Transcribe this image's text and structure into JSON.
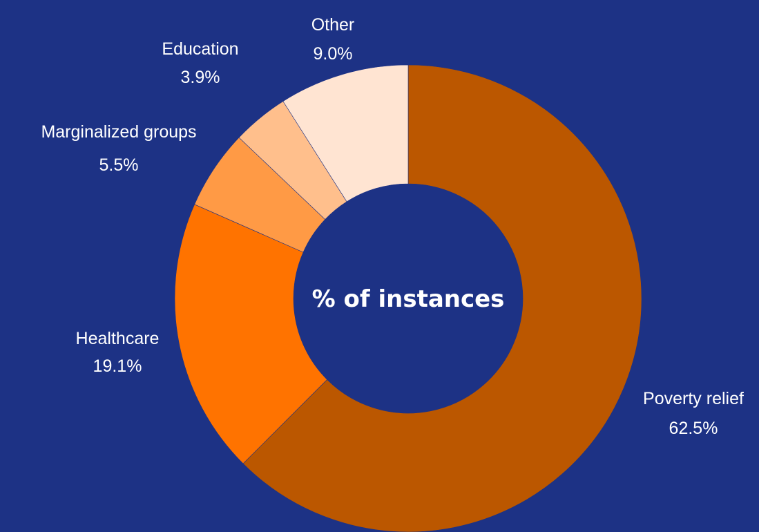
{
  "chart_data": {
    "type": "pie",
    "style": "donut",
    "center_title": "% of instances",
    "background": "#1d3285",
    "slices": [
      {
        "label": "Poverty relief",
        "value": 62.5,
        "value_label": "62.5%",
        "color": "#bb5700"
      },
      {
        "label": "Healthcare",
        "value": 19.1,
        "value_label": "19.1%",
        "color": "#ff7300"
      },
      {
        "label": "Marginalized groups",
        "value": 5.5,
        "value_label": "5.5%",
        "color": "#ff9a45"
      },
      {
        "label": "Education",
        "value": 3.9,
        "value_label": "3.9%",
        "color": "#ffbf8c"
      },
      {
        "label": "Other",
        "value": 9.0,
        "value_label": "9.0%",
        "color": "#ffe4d2"
      }
    ]
  }
}
